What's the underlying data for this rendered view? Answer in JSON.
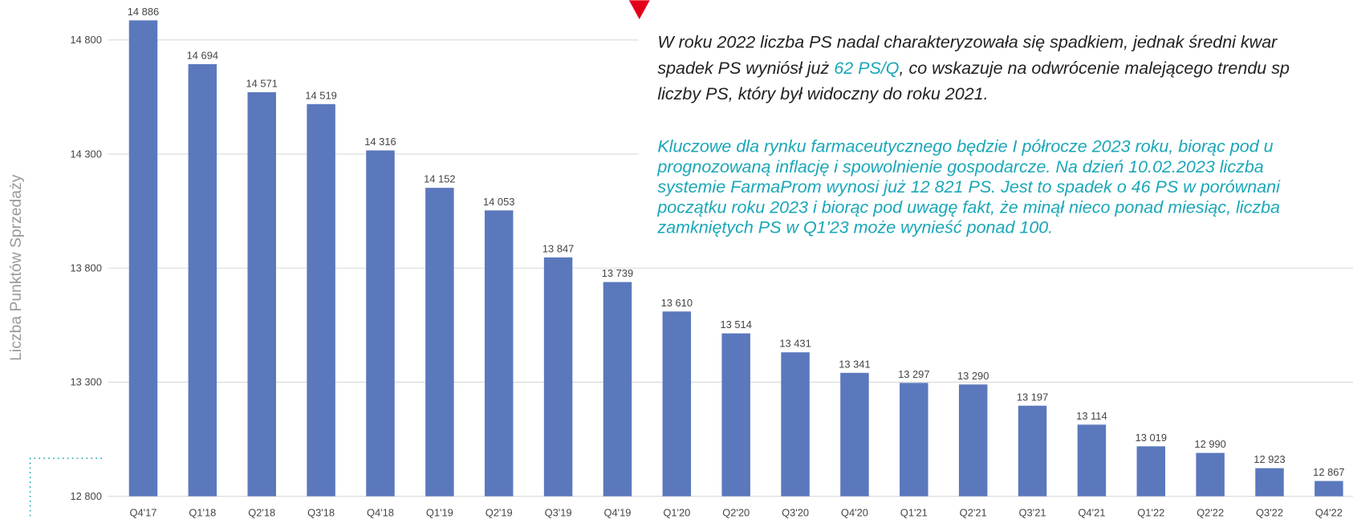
{
  "chart_data": {
    "type": "bar",
    "y_axis_label": "Liczba Punktów Sprzedaży",
    "categories": [
      "Q4'17",
      "Q1'18",
      "Q2'18",
      "Q3'18",
      "Q4'18",
      "Q1'19",
      "Q2'19",
      "Q3'19",
      "Q4'19",
      "Q1'20",
      "Q2'20",
      "Q3'20",
      "Q4'20",
      "Q1'21",
      "Q2'21",
      "Q3'21",
      "Q4'21",
      "Q1'22",
      "Q2'22",
      "Q3'22",
      "Q4'22"
    ],
    "values": [
      14886,
      14694,
      14571,
      14519,
      14316,
      14152,
      14053,
      13847,
      13739,
      13610,
      13514,
      13431,
      13341,
      13297,
      13290,
      13197,
      13114,
      13019,
      12990,
      12923,
      12867
    ],
    "value_labels": [
      "14 886",
      "14 694",
      "14 571",
      "14 519",
      "14 316",
      "14 152",
      "14 053",
      "13 847",
      "13 739",
      "13 610",
      "13 514",
      "13 431",
      "13 341",
      "13 297",
      "13 290",
      "13 197",
      "13 114",
      "13 019",
      "12 990",
      "12 923",
      "12 867"
    ],
    "color": "#5b78bd",
    "ylim": [
      12800,
      14800
    ],
    "yticks": [
      {
        "value": 12800,
        "label": "12 800"
      },
      {
        "value": 13300,
        "label": "13 300"
      },
      {
        "value": 13800,
        "label": "13 800"
      },
      {
        "value": 14300,
        "label": "14 300"
      },
      {
        "value": 14800,
        "label": "14 800"
      }
    ],
    "grid": true,
    "annotations": {
      "paragraph_1": [
        [
          "W roku 2022 liczba PS nadal charakteryzowała się spadkiem, jednak średni kwar"
        ],
        [
          "spadek PS wyniósł już ",
          "62 PS/Q",
          ", co wskazuje na odwrócenie malejącego trendu sp"
        ],
        [
          "liczby PS, który był widoczny do roku 2021."
        ]
      ],
      "paragraph_2": [
        "Kluczowe dla rynku farmaceutycznego będzie I półrocze 2023 roku, biorąc pod u",
        "prognozowaną inflację i spowolnienie gospodarcze. Na dzień 10.02.2023 liczba",
        "systemie FarmaProm wynosi już 12 821 PS. Jest to spadek o 46 PS w porównani",
        "początku roku 2023 i biorąc pod uwagę fakt, że minął nieco ponad miesiąc, liczba",
        "zamkniętych PS w Q1'23 może wynieść ponad 100."
      ]
    }
  }
}
